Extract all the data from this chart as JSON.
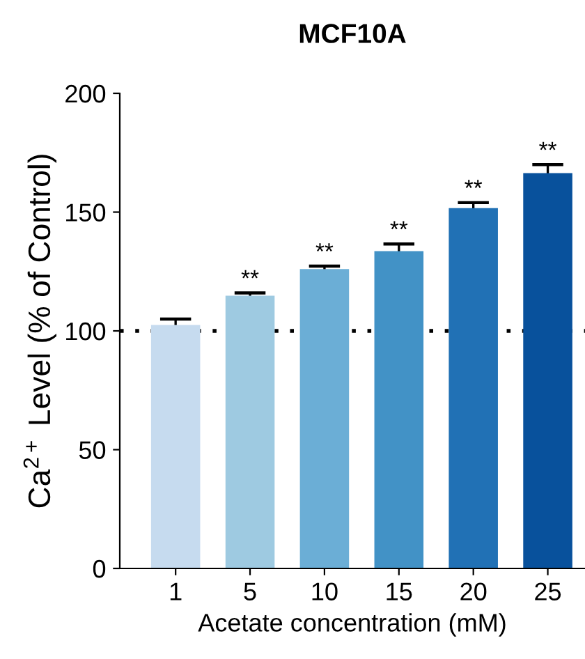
{
  "chart_data": {
    "type": "bar",
    "title": "MCF10A",
    "xlabel": "Acetate concentration (mM)",
    "ylabel": "Ca$^{2+}$ Level (% of Control)",
    "categories": [
      "1",
      "5",
      "10",
      "15",
      "20",
      "25"
    ],
    "values": [
      102.5,
      114.8,
      126,
      133.6,
      151.7,
      166.4
    ],
    "errors": [
      2.5,
      1.2,
      1.3,
      3,
      2.3,
      3.6
    ],
    "colors": [
      "#c6dbef",
      "#9ecae1",
      "#6baed6",
      "#4292c6",
      "#2171b5",
      "#08519c"
    ],
    "ylim": [
      0,
      200
    ],
    "yticks": [
      0,
      50,
      100,
      150,
      200
    ],
    "grid": false,
    "ref_lines": [
      {
        "axis": "y",
        "value": 100,
        "line_style": "dotted",
        "color": "#000000"
      }
    ],
    "annotations": [
      {
        "text": "**",
        "x": "5",
        "y": 114.8
      },
      {
        "text": "**",
        "x": "10",
        "y": 126
      },
      {
        "text": "**",
        "x": "15",
        "y": 133.6
      },
      {
        "text": "**",
        "x": "20",
        "y": 151.7
      },
      {
        "text": "**",
        "x": "25",
        "y": 166.4
      }
    ]
  }
}
